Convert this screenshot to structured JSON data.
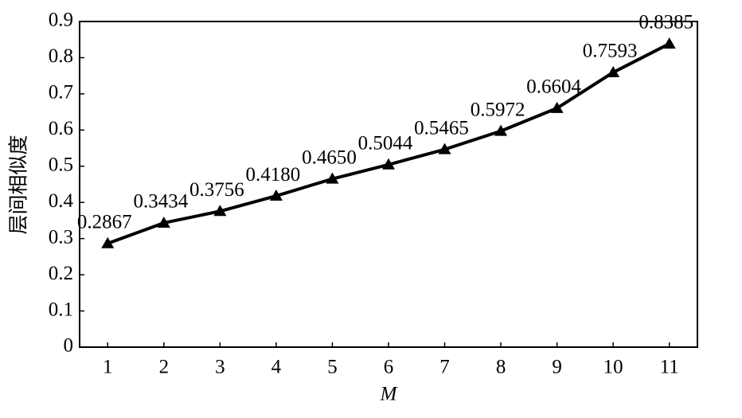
{
  "chart_data": {
    "type": "line",
    "ylabel": "层间相似度",
    "xlabel": "M",
    "x": [
      1,
      2,
      3,
      4,
      5,
      6,
      7,
      8,
      9,
      10,
      11
    ],
    "series": [
      {
        "name": "层间相似度",
        "color": "#000000",
        "values": [
          0.2867,
          0.3434,
          0.3756,
          0.418,
          0.465,
          0.5044,
          0.5465,
          0.5972,
          0.6604,
          0.7593,
          0.8385
        ],
        "value_labels": [
          "0.2867",
          "0.3434",
          "0.3756",
          "0.4180",
          "0.4650",
          "0.5044",
          "0.5465",
          "0.5972",
          "0.6604",
          "0.7593",
          "0.8385"
        ]
      }
    ],
    "xlim": [
      0.5,
      11.5
    ],
    "ylim": [
      0,
      0.9
    ],
    "xticks": [
      1,
      2,
      3,
      4,
      5,
      6,
      7,
      8,
      9,
      10,
      11
    ],
    "yticks": [
      0,
      0.1,
      0.2,
      0.3,
      0.4,
      0.5,
      0.6,
      0.7,
      0.8,
      0.9
    ],
    "grid": false
  }
}
